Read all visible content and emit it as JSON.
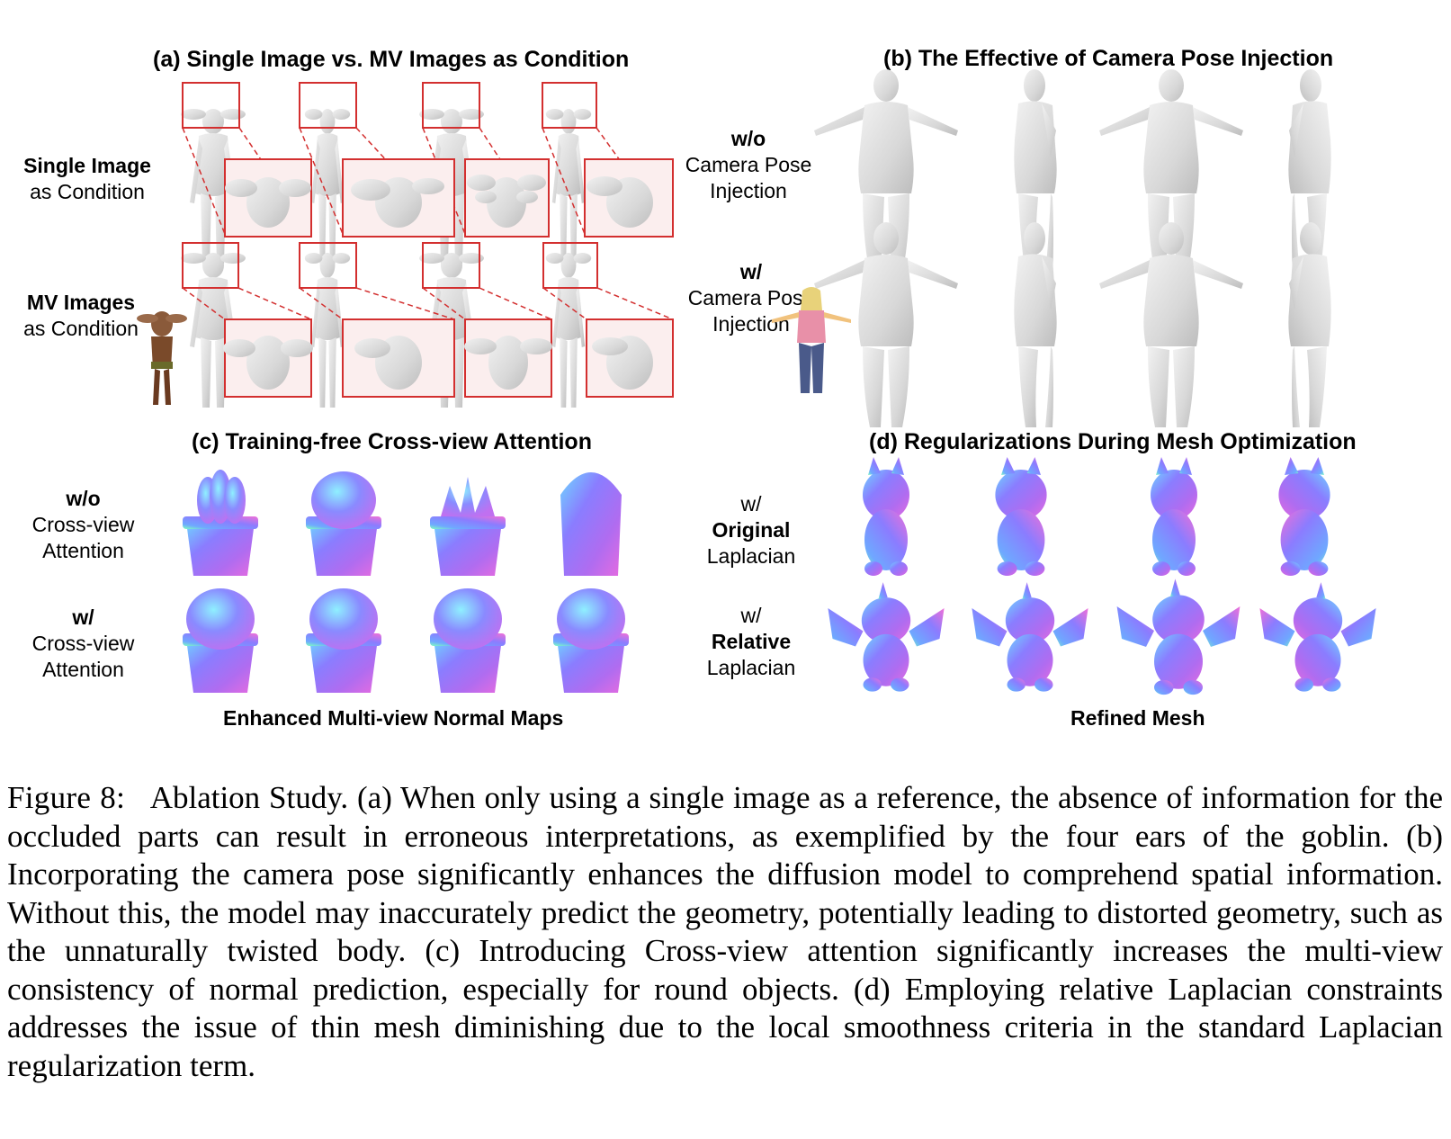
{
  "panels": {
    "a": {
      "title": "(a) Single Image vs. MV Images as Condition",
      "rows": [
        {
          "bold": "Single Image",
          "normal": "as Condition"
        },
        {
          "bold": "MV Images",
          "normal": "as Condition"
        }
      ]
    },
    "b": {
      "title": "(b) The Effective of Camera Pose Injection",
      "rows": [
        {
          "bold": "w/o",
          "line2": "Camera Pose",
          "line3": "Injection"
        },
        {
          "bold": "w/",
          "line2": "Camera Pose",
          "line3": "Injection"
        }
      ]
    },
    "c": {
      "title": "(c) Training-free Cross-view Attention",
      "rows": [
        {
          "bold": "w/o",
          "line2": "Cross-view",
          "line3": "Attention"
        },
        {
          "bold": "w/",
          "line2": "Cross-view",
          "line3": "Attention"
        }
      ],
      "bottom_label": "Enhanced Multi-view Normal Maps"
    },
    "d": {
      "title": "(d) Regularizations During Mesh Optimization",
      "rows": [
        {
          "line1": "w/",
          "bold": "Original",
          "line3": "Laplacian"
        },
        {
          "line1": "w/",
          "bold": "Relative",
          "line3": "Laplacian"
        }
      ],
      "bottom_label": "Refined Mesh"
    }
  },
  "caption": {
    "label": "Figure 8:",
    "text": "Ablation Study. (a) When only using a single image as a reference, the absence of information for the occluded parts can result in erroneous interpretations, as exemplified by the four ears of the goblin. (b) Incorporating the camera pose significantly enhances the diffusion model to comprehend spatial information. Without this, the model may inaccurately predict the geometry, potentially leading to distorted geometry, such as the unnaturally twisted body. (c) Introducing Cross-view attention significantly increases the multi-view consistency of normal prediction, especially for round objects. (d) Employing relative Laplacian constraints addresses the issue of thin mesh diminishing due to the local smoothness criteria in the standard Laplacian regularization term."
  },
  "colors": {
    "highlight_box": "#d32f2f",
    "zoom_bg": "#fbeeee",
    "mesh_gray": "#dcdcdc",
    "normal_blue": "#7f7fff",
    "normal_pink": "#e06be0",
    "normal_green": "#7fffb0"
  }
}
